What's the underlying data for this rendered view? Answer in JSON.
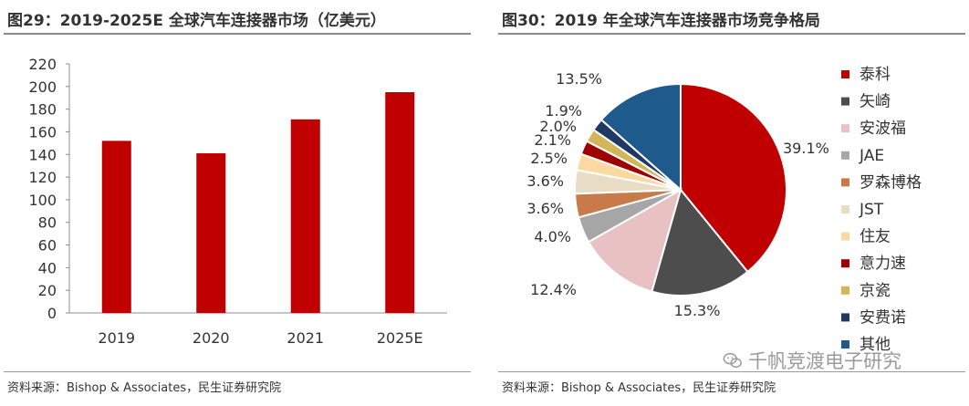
{
  "charts": {
    "left": {
      "title": "图29：2019-2025E 全球汽车连接器市场（亿美元）",
      "source": "资料来源：Bishop & Associates，民生证券研究院"
    },
    "right": {
      "title": "图30：2019 年全球汽车连接器市场竞争格局",
      "source": "资料来源：Bishop & Associates，民生证券研究院"
    }
  },
  "watermark": "千帆竞渡电子研究",
  "colors": {
    "bar": "#C00000",
    "pie": [
      "#C00000",
      "#4D4D4D",
      "#E8C2C2",
      "#A6A6A6",
      "#C87A4B",
      "#E8DCC4",
      "#FCD9A0",
      "#9E0000",
      "#D1B65A",
      "#1F3864",
      "#1F5A8C"
    ]
  },
  "chart_data": [
    {
      "type": "bar",
      "categories": [
        "2019",
        "2020",
        "2021",
        "2025E"
      ],
      "values": [
        152,
        141,
        171,
        195
      ],
      "title": "2019-2025E 全球汽车连接器市场（亿美元）",
      "ylim": [
        0,
        220
      ],
      "yticks": [
        "0",
        "20",
        "40",
        "60",
        "80",
        "100",
        "120",
        "140",
        "160",
        "180",
        "200",
        "220"
      ],
      "grid": false,
      "xlabel": "",
      "ylabel": ""
    },
    {
      "type": "pie",
      "title": "2019 年全球汽车连接器市场竞争格局",
      "labels": [
        "泰科",
        "矢崎",
        "安波福",
        "JAE",
        "罗森博格",
        "JST",
        "住友",
        "意力速",
        "京瓷",
        "安费诺",
        "其他"
      ],
      "values": [
        39.1,
        15.3,
        12.4,
        4.0,
        3.6,
        3.6,
        2.5,
        2.1,
        2.0,
        1.9,
        13.5
      ],
      "value_labels": [
        "39.1%",
        "15.3%",
        "12.4%",
        "4.0%",
        "3.6%",
        "3.6%",
        "2.5%",
        "2.1%",
        "2.0%",
        "1.9%",
        "13.5%"
      ],
      "legend": "right"
    }
  ]
}
